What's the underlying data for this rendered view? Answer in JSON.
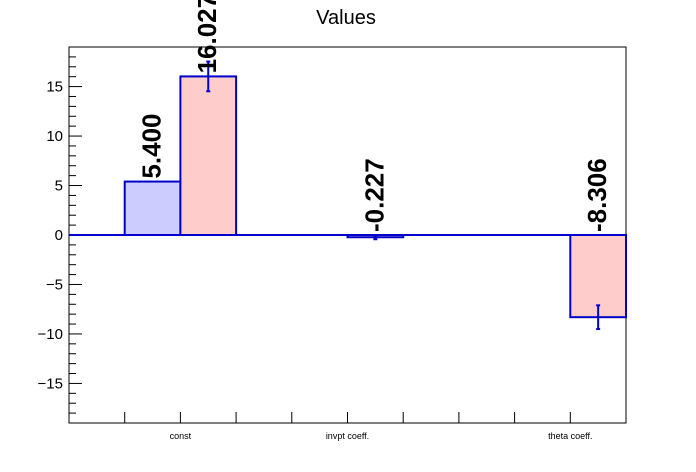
{
  "chart_data": {
    "type": "bar",
    "title": "Values",
    "categories": [
      "const",
      "invpt coeff.",
      "theta coeff."
    ],
    "series": [
      {
        "values": [
          5.4,
          null,
          null
        ],
        "labels": [
          "5.400",
          "",
          ""
        ],
        "fill": "#ccccff",
        "stroke": "#0000cc"
      },
      {
        "values": [
          16.027,
          -0.227,
          -8.306
        ],
        "labels": [
          "16.027",
          "-0.227",
          "-8.306"
        ],
        "errors": [
          1.5,
          0.2,
          1.2
        ],
        "fill": "#ffcccc",
        "stroke": "#0000cc"
      }
    ],
    "ylim": [
      -19,
      19
    ],
    "yticks": [
      -15,
      -10,
      -5,
      0,
      5,
      10,
      15
    ],
    "ytick_labels": [
      "−15",
      "−10",
      "−5",
      "0",
      "5",
      "10",
      "15"
    ],
    "grid": false,
    "legend": "none"
  }
}
